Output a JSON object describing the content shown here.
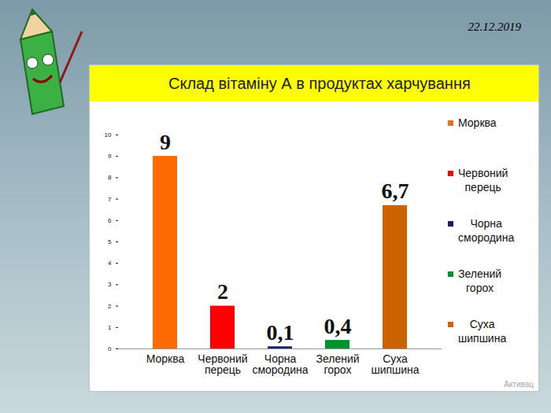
{
  "date": "22.12.2019",
  "watermark": "Активац",
  "chart_data": {
    "type": "bar",
    "title": "Склад вітаміну А в продуктах харчування",
    "categories": [
      "Морква",
      "Червоний перець",
      "Чорна смородина",
      "Зелений горох",
      "Суха шипшина"
    ],
    "values": [
      9,
      2,
      0.1,
      0.4,
      6.7
    ],
    "value_labels": [
      "9",
      "2",
      "0,1",
      "0,4",
      "6,7"
    ],
    "colors": [
      "#ff6a00",
      "#ff0000",
      "#1c1c6e",
      "#00922e",
      "#cc6200"
    ],
    "ylim": [
      0,
      10
    ],
    "yticks": [
      0,
      1,
      2,
      3,
      4,
      5,
      6,
      7,
      8,
      9,
      10
    ],
    "grid": false,
    "data_labels": true,
    "legend": "right"
  }
}
